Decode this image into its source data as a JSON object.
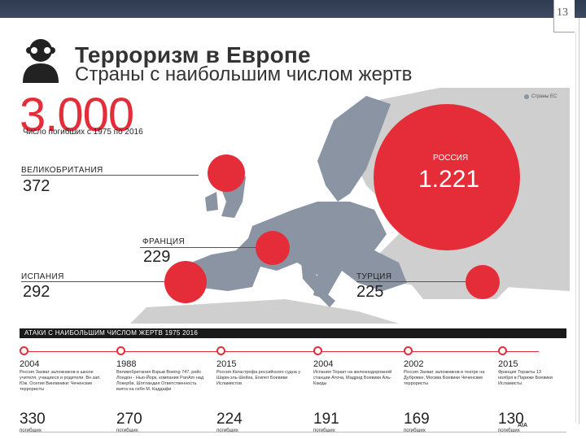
{
  "slide": {
    "number": "13"
  },
  "header": {
    "icon": "masked-person-icon",
    "title": "Терроризм в Европе",
    "subtitle": "Страны с наибольшим числом жертв"
  },
  "legend": {
    "label": "Страны ЕС",
    "color": "#8a94a3"
  },
  "total": {
    "value": "3.000",
    "caption": "Число погибших с 1975 по 2016"
  },
  "countries": {
    "uk": {
      "name": "ВЕЛИКОБРИТАНИЯ",
      "count": "372"
    },
    "france": {
      "name": "ФРАНЦИЯ",
      "count": "229"
    },
    "spain": {
      "name": "ИСПАНИЯ",
      "count": "292"
    },
    "turkey": {
      "name": "ТУРЦИЯ",
      "count": "225"
    },
    "russia": {
      "name": "РОССИЯ",
      "count": "1.221"
    }
  },
  "colors": {
    "accent": "#e52d3a",
    "eu": "#8a94a3",
    "land": "#cfcfcf",
    "sea": "#ffffff"
  },
  "attacks": {
    "heading": "АТАКИ С НАИБОЛЬШИМ ЧИСЛОМ ЖЕРТВ 1975 2016",
    "items": [
      {
        "year": "2004",
        "text": "Россия Захват заложников в школе учителя, учащиеся и родители. Вн.зап. Юж. Осетия Виновники: Чеченские террористы",
        "victims": "330",
        "unit": "погибших"
      },
      {
        "year": "1988",
        "text": "Великобритания Взрыв Boeing 747, рейс Лондон - Нью-Йорк, компания PanAm над Локерби, Шотландия Ответственность взята на себя М. Каддафи",
        "victims": "270",
        "unit": "погибших"
      },
      {
        "year": "2015",
        "text": "Россия Катастрофа российского судна у Шарм-эль-Шейха, Египет Боевики Исламистов",
        "victims": "224",
        "unit": "погибших"
      },
      {
        "year": "2004",
        "text": "Испания Теракт на железнодорожной станции Аточа, Мадрид Боевики Аль-Каиды",
        "victims": "191",
        "unit": "погибших"
      },
      {
        "year": "2002",
        "text": "Россия Захват заложников в театре на Дубровке, Москва Боевики Чеченские террористы",
        "victims": "169",
        "unit": "погибших"
      },
      {
        "year": "2015",
        "text": "Франция Теракты 13 ноября в Париже Боевики Исламисты",
        "victims": "130",
        "unit": "погибших"
      }
    ]
  },
  "source_logo": "AIA"
}
